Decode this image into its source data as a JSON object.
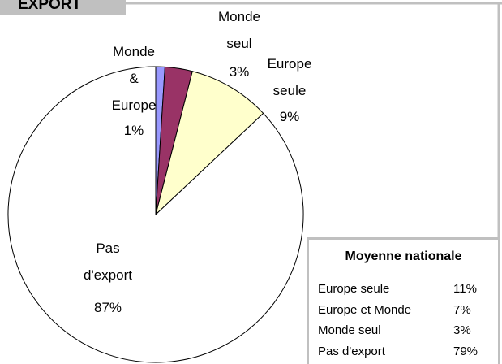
{
  "chart_data": {
    "type": "pie",
    "title": "EXPORT",
    "categories": [
      "Monde & Europe",
      "Monde seul",
      "Europe seule",
      "Pas d'export"
    ],
    "values": [
      1,
      3,
      9,
      87
    ],
    "value_labels": [
      "1%",
      "3%",
      "9%",
      "87%"
    ],
    "colors": [
      "#9999ff",
      "#993366",
      "#ffffcc",
      "#ffffff"
    ]
  },
  "table": {
    "title": "Moyenne nationale",
    "rows": [
      [
        "Europe seule",
        "11%"
      ],
      [
        "Europe et Monde",
        "7%"
      ],
      [
        "Monde seul",
        "3%"
      ],
      [
        "Pas d'export",
        "79%"
      ]
    ]
  }
}
